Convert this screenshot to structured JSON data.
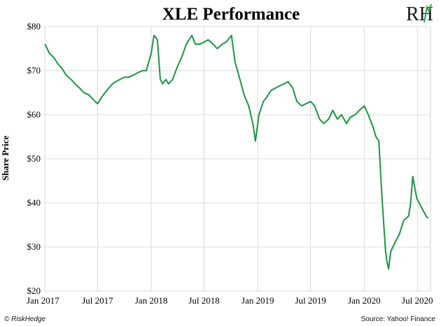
{
  "footer": {
    "left": "© RiskHedge",
    "right": "Source: Yahoo! Finance"
  },
  "logo": {
    "text": "RH",
    "color": "#1a1a1a",
    "accent": "#2e9a4a"
  },
  "chart_data": {
    "type": "line",
    "title": "XLE Performance",
    "ylabel": "Share Price",
    "xlabel": "",
    "ylim": [
      20,
      80
    ],
    "yticks": [
      20,
      30,
      40,
      50,
      60,
      70,
      80
    ],
    "ytick_labels": [
      "$20",
      "$30",
      "$40",
      "$50",
      "$60",
      "$70",
      "$80"
    ],
    "xlim": [
      "2017-01-01",
      "2020-08-15"
    ],
    "xticks": [
      "2017-01-01",
      "2017-07-01",
      "2018-01-01",
      "2018-07-01",
      "2019-01-01",
      "2019-07-01",
      "2020-01-01",
      "2020-07-01"
    ],
    "xtick_labels": [
      "Jan 2017",
      "Jul 2017",
      "Jan 2018",
      "Jul 2018",
      "Jan 2019",
      "Jul 2019",
      "Jan 2020",
      "Jul 2020"
    ],
    "grid": true,
    "color": "#1a9641",
    "series": [
      {
        "name": "",
        "x": [
          "2017-01-02",
          "2017-01-16",
          "2017-02-01",
          "2017-02-15",
          "2017-03-01",
          "2017-03-15",
          "2017-04-01",
          "2017-04-15",
          "2017-05-01",
          "2017-05-15",
          "2017-06-01",
          "2017-06-15",
          "2017-07-01",
          "2017-07-15",
          "2017-08-01",
          "2017-08-21",
          "2017-09-01",
          "2017-09-15",
          "2017-10-01",
          "2017-10-15",
          "2017-11-01",
          "2017-11-15",
          "2017-12-01",
          "2017-12-15",
          "2018-01-01",
          "2018-01-10",
          "2018-01-22",
          "2018-02-01",
          "2018-02-09",
          "2018-02-20",
          "2018-03-01",
          "2018-03-15",
          "2018-04-01",
          "2018-04-15",
          "2018-05-01",
          "2018-05-20",
          "2018-06-01",
          "2018-06-15",
          "2018-07-01",
          "2018-07-15",
          "2018-08-01",
          "2018-08-15",
          "2018-09-01",
          "2018-09-15",
          "2018-10-03",
          "2018-10-15",
          "2018-11-01",
          "2018-11-15",
          "2018-12-01",
          "2018-12-15",
          "2018-12-24",
          "2019-01-05",
          "2019-01-20",
          "2019-02-01",
          "2019-02-15",
          "2019-03-01",
          "2019-03-15",
          "2019-04-01",
          "2019-04-15",
          "2019-05-01",
          "2019-05-15",
          "2019-06-01",
          "2019-06-15",
          "2019-07-01",
          "2019-07-15",
          "2019-08-01",
          "2019-08-15",
          "2019-09-01",
          "2019-09-15",
          "2019-10-01",
          "2019-10-15",
          "2019-11-01",
          "2019-11-15",
          "2019-12-01",
          "2019-12-15",
          "2020-01-01",
          "2020-01-15",
          "2020-02-01",
          "2020-02-10",
          "2020-02-20",
          "2020-03-01",
          "2020-03-09",
          "2020-03-14",
          "2020-03-18",
          "2020-03-24",
          "2020-04-01",
          "2020-04-15",
          "2020-05-01",
          "2020-05-15",
          "2020-06-01",
          "2020-06-08",
          "2020-06-15",
          "2020-06-29",
          "2020-07-15",
          "2020-07-31",
          "2020-08-07"
        ],
        "values": [
          76,
          74,
          73,
          71.5,
          70.5,
          69,
          68,
          67,
          66,
          65,
          64.5,
          63.5,
          62.5,
          64,
          65.5,
          67,
          67.5,
          68,
          68.5,
          68.5,
          69,
          69.5,
          70,
          70,
          74,
          78,
          77,
          68,
          67,
          68,
          67,
          68,
          71,
          73,
          76,
          78,
          76,
          76,
          76.5,
          77,
          76,
          75,
          76,
          76.5,
          78,
          72,
          68,
          64.5,
          62,
          58,
          54,
          60,
          63,
          64,
          65.5,
          66,
          66.5,
          67,
          67.5,
          66,
          63,
          62,
          62.5,
          63,
          62,
          59,
          58,
          59,
          61,
          59,
          60,
          58,
          59.5,
          60,
          61,
          62,
          60,
          57,
          55,
          54,
          42,
          34,
          29,
          27,
          25,
          29,
          31,
          33,
          36,
          37,
          40,
          46,
          41,
          39,
          37,
          36.5
        ]
      }
    ]
  }
}
